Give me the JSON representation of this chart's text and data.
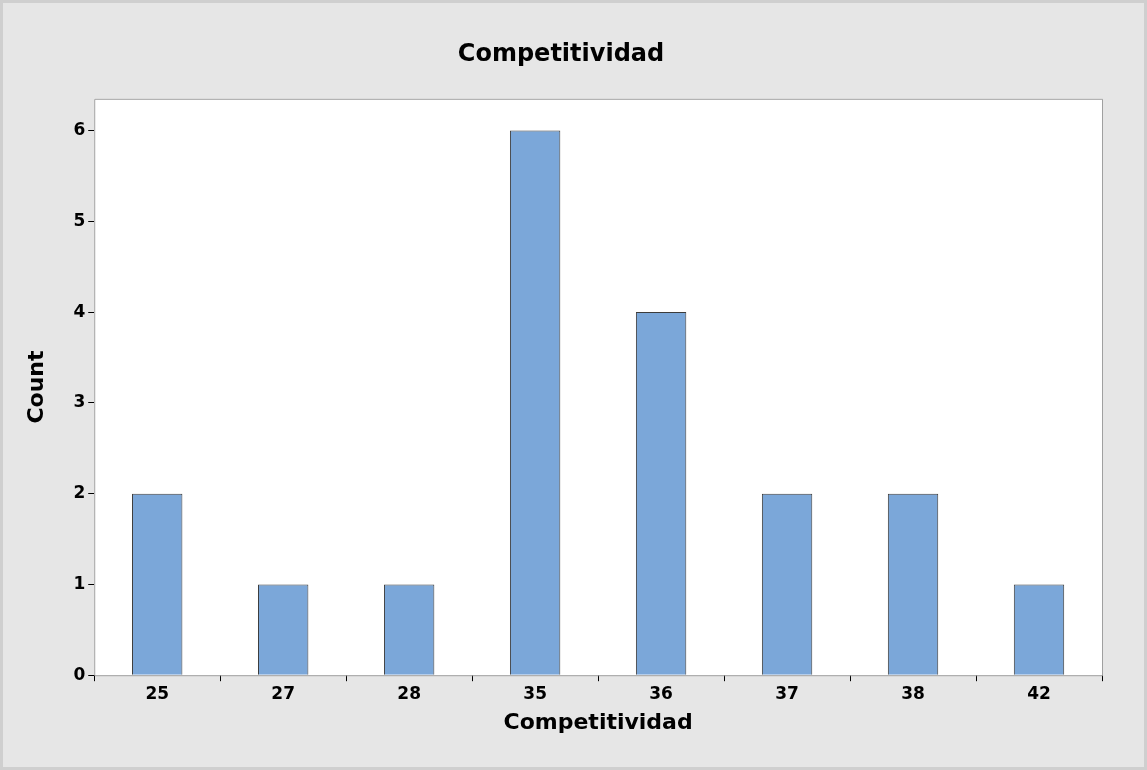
{
  "chart_data": {
    "type": "bar",
    "title": "Competitividad",
    "xlabel": "Competitividad",
    "ylabel": "Count",
    "categories": [
      "25",
      "27",
      "28",
      "35",
      "36",
      "37",
      "38",
      "42"
    ],
    "values": [
      2,
      1,
      1,
      6,
      4,
      2,
      2,
      1
    ],
    "color": "#7ba7d9",
    "ylim": [
      0,
      6.35
    ],
    "yticks": [
      0,
      1,
      2,
      3,
      4,
      5,
      6
    ],
    "grid": false,
    "legend": false
  }
}
